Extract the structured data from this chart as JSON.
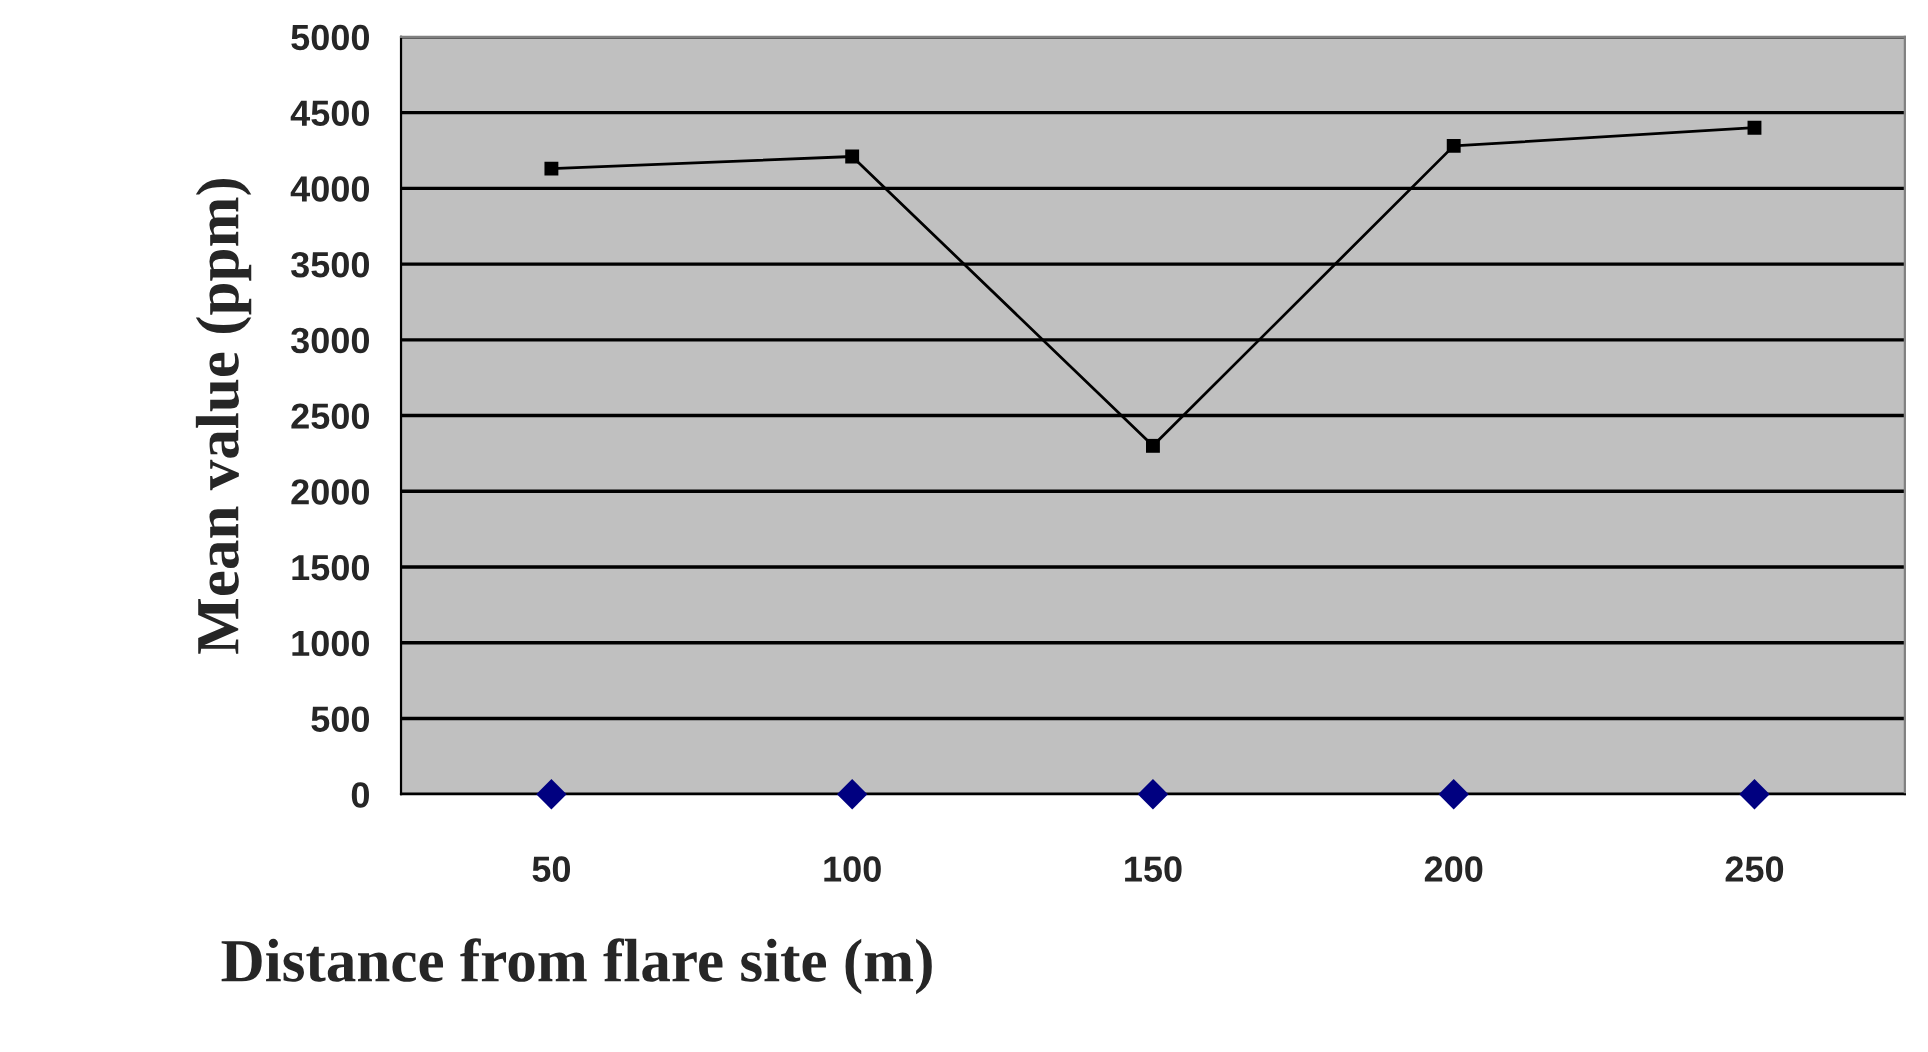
{
  "chart_data": {
    "type": "line",
    "xlabel": "Distance from flare site (m)",
    "ylabel": "Mean value (ppm)",
    "categories": [
      "50",
      "100",
      "150",
      "200",
      "250"
    ],
    "series": [
      {
        "color": "#000000",
        "values": [
          4130,
          4210,
          2300,
          4280,
          4400
        ],
        "marker": "square"
      },
      {
        "type": "scatter",
        "color": "#000080",
        "values": [
          0,
          0,
          0,
          0,
          0
        ],
        "marker": "diamond"
      }
    ],
    "ylim": [
      0,
      5000
    ],
    "yticks": [
      0,
      500,
      1000,
      1500,
      2000,
      2500,
      3000,
      3500,
      4000,
      4500,
      5000
    ],
    "grid": "y",
    "legend": false
  }
}
